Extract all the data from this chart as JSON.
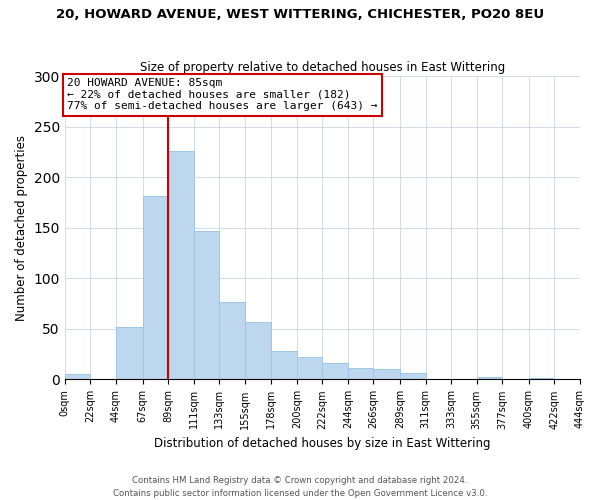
{
  "title": "20, HOWARD AVENUE, WEST WITTERING, CHICHESTER, PO20 8EU",
  "subtitle": "Size of property relative to detached houses in East Wittering",
  "xlabel": "Distribution of detached houses by size in East Wittering",
  "ylabel": "Number of detached properties",
  "bin_edges": [
    0,
    22,
    44,
    67,
    89,
    111,
    133,
    155,
    178,
    200,
    222,
    244,
    266,
    289,
    311,
    333,
    355,
    377,
    400,
    422,
    444
  ],
  "bin_labels": [
    "0sqm",
    "22sqm",
    "44sqm",
    "67sqm",
    "89sqm",
    "111sqm",
    "133sqm",
    "155sqm",
    "178sqm",
    "200sqm",
    "222sqm",
    "244sqm",
    "266sqm",
    "289sqm",
    "311sqm",
    "333sqm",
    "355sqm",
    "377sqm",
    "400sqm",
    "422sqm",
    "444sqm"
  ],
  "counts": [
    5,
    0,
    52,
    181,
    226,
    147,
    77,
    57,
    28,
    22,
    16,
    11,
    10,
    6,
    0,
    0,
    2,
    0,
    1,
    0
  ],
  "bar_color": "#BDD7EE",
  "bar_edge_color": "#9EC6E8",
  "property_value": 85,
  "vline_x": 89,
  "vline_color": "#CC0000",
  "annotation_title": "20 HOWARD AVENUE: 85sqm",
  "annotation_line1": "← 22% of detached houses are smaller (182)",
  "annotation_line2": "77% of semi-detached houses are larger (643) →",
  "annotation_box_edge": "#CC0000",
  "ylim": [
    0,
    300
  ],
  "yticks": [
    0,
    50,
    100,
    150,
    200,
    250,
    300
  ],
  "footer1": "Contains HM Land Registry data © Crown copyright and database right 2024.",
  "footer2": "Contains public sector information licensed under the Open Government Licence v3.0."
}
